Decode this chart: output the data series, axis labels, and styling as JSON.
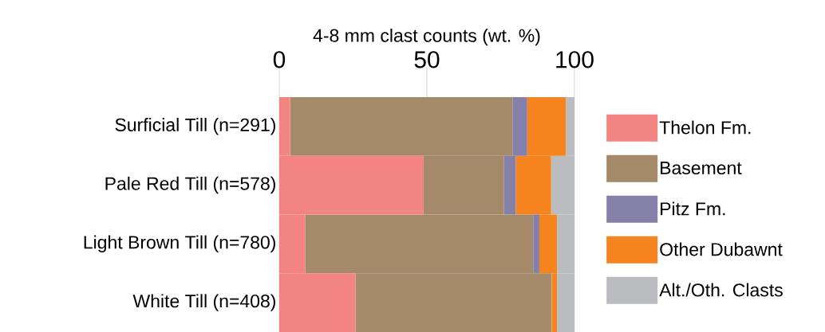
{
  "chart_data": {
    "type": "bar",
    "orientation": "horizontal",
    "stacked": true,
    "xlabel": "4-8 mm clast counts (wt. %)",
    "categories": [
      "Surficial Till (n=291)",
      "Pale Red Till (n=578)",
      "Light Brown Till (n=780)",
      "White Till (n=408)"
    ],
    "series": [
      {
        "name": "Thelon Fm.",
        "color": "#f28482",
        "values": [
          3.7,
          48.9,
          8.8,
          25.8
        ]
      },
      {
        "name": "Basement",
        "color": "#a58a6a",
        "values": [
          75.3,
          27.2,
          77.2,
          66.5
        ]
      },
      {
        "name": "Pitz Fm.",
        "color": "#8480a8",
        "values": [
          5.0,
          4.0,
          2.1,
          0
        ]
      },
      {
        "name": "Other Dubawnt",
        "color": "#f5841f",
        "values": [
          13.1,
          12.0,
          6.0,
          1.8
        ]
      },
      {
        "name": "Alt./Oth. Clasts",
        "color": "#bbbcc0",
        "values": [
          2.9,
          7.9,
          5.9,
          5.9
        ]
      }
    ],
    "xlim": [
      0,
      100
    ],
    "xticks": [
      0,
      50,
      100
    ],
    "grid": "x",
    "legend": "right"
  }
}
